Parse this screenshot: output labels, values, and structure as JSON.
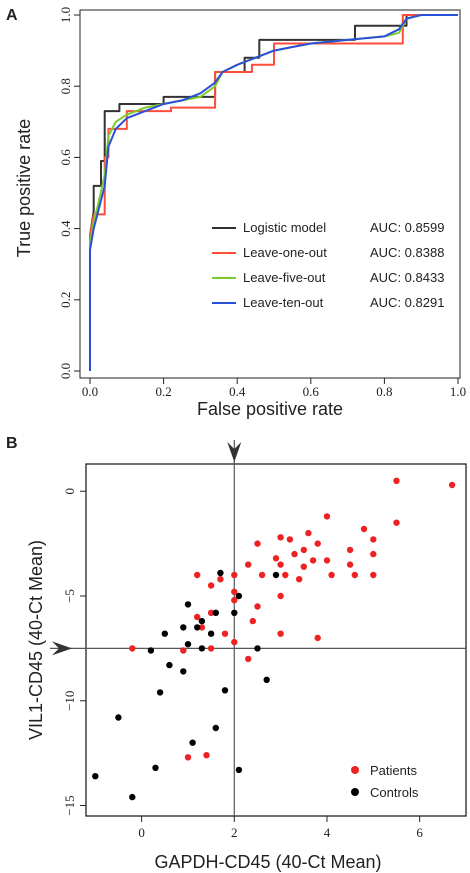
{
  "panel_a": {
    "letter": "A",
    "xlabel": "False positive rate",
    "ylabel": "True positive rate",
    "ticks": [
      "0.0",
      "0.2",
      "0.4",
      "0.6",
      "0.8",
      "1.0"
    ],
    "legend": [
      {
        "name": "Logistic model",
        "auc": "AUC: 0.8599",
        "color": "#333333"
      },
      {
        "name": "Leave-one-out",
        "auc": "AUC: 0.8388",
        "color": "#ff4d3a"
      },
      {
        "name": "Leave-five-out",
        "auc": "AUC: 0.8433",
        "color": "#7ccc2a"
      },
      {
        "name": "Leave-ten-out",
        "auc": "AUC: 0.8291",
        "color": "#2a4fd8"
      }
    ]
  },
  "panel_b": {
    "letter": "B",
    "xlabel": "GAPDH-CD45 (40-Ct Mean)",
    "ylabel": "VIL1-CD45 (40-Ct Mean)",
    "xticks": [
      "0",
      "2",
      "4",
      "6"
    ],
    "yticks": [
      "0",
      "−5",
      "−10",
      "−15"
    ],
    "legend": [
      {
        "name": "Patients",
        "color": "#ee2222"
      },
      {
        "name": "Controls",
        "color": "#000000"
      }
    ]
  },
  "chart_data": [
    {
      "type": "line",
      "title": "",
      "xlabel": "False positive rate",
      "ylabel": "True positive rate",
      "xlim": [
        0,
        1
      ],
      "ylim": [
        0,
        1
      ],
      "grid": false,
      "legend_position": "bottom-right",
      "series": [
        {
          "name": "Logistic model AUC: 0.8599",
          "color": "#333333",
          "x": [
            0,
            0,
            0.01,
            0.01,
            0.03,
            0.03,
            0.04,
            0.04,
            0.08,
            0.08,
            0.2,
            0.2,
            0.34,
            0.34,
            0.42,
            0.42,
            0.46,
            0.46,
            0.5,
            0.5,
            0.72,
            0.72,
            0.82,
            0.82,
            0.86,
            0.86,
            0.9,
            0.95,
            1.0
          ],
          "y": [
            0,
            0.38,
            0.45,
            0.52,
            0.52,
            0.59,
            0.59,
            0.73,
            0.73,
            0.75,
            0.75,
            0.77,
            0.77,
            0.84,
            0.84,
            0.88,
            0.88,
            0.93,
            0.93,
            0.93,
            0.93,
            0.97,
            0.97,
            0.97,
            0.97,
            1.0,
            1.0,
            1.0,
            1.0
          ]
        },
        {
          "name": "Leave-one-out AUC: 0.8388",
          "color": "#ff4d3a",
          "x": [
            0,
            0,
            0.01,
            0.02,
            0.04,
            0.04,
            0.05,
            0.05,
            0.1,
            0.1,
            0.22,
            0.22,
            0.34,
            0.34,
            0.44,
            0.44,
            0.5,
            0.5,
            0.62,
            0.62,
            0.85,
            0.85,
            0.9,
            0.95,
            1.0
          ],
          "y": [
            0,
            0.38,
            0.44,
            0.44,
            0.44,
            0.6,
            0.6,
            0.68,
            0.68,
            0.73,
            0.73,
            0.74,
            0.74,
            0.84,
            0.84,
            0.86,
            0.86,
            0.92,
            0.92,
            0.92,
            0.92,
            1.0,
            1.0,
            1.0,
            1.0
          ]
        },
        {
          "name": "Leave-five-out AUC: 0.8433",
          "color": "#7ccc2a",
          "x": [
            0,
            0.0,
            0.01,
            0.02,
            0.04,
            0.05,
            0.07,
            0.1,
            0.15,
            0.2,
            0.25,
            0.3,
            0.34,
            0.36,
            0.4,
            0.45,
            0.5,
            0.55,
            0.6,
            0.7,
            0.8,
            0.84,
            0.86,
            0.9,
            0.95,
            1.0
          ],
          "y": [
            0,
            0.36,
            0.42,
            0.46,
            0.55,
            0.66,
            0.7,
            0.72,
            0.74,
            0.75,
            0.76,
            0.77,
            0.8,
            0.84,
            0.86,
            0.88,
            0.9,
            0.91,
            0.92,
            0.93,
            0.94,
            0.95,
            0.99,
            1.0,
            1.0,
            1.0
          ]
        },
        {
          "name": "Leave-ten-out AUC: 0.8291",
          "color": "#2a4fd8",
          "x": [
            0,
            0.0,
            0.01,
            0.02,
            0.04,
            0.05,
            0.07,
            0.1,
            0.15,
            0.2,
            0.25,
            0.3,
            0.34,
            0.36,
            0.4,
            0.45,
            0.5,
            0.55,
            0.6,
            0.7,
            0.8,
            0.84,
            0.86,
            0.9,
            0.95,
            1.0
          ],
          "y": [
            0,
            0.34,
            0.4,
            0.44,
            0.52,
            0.63,
            0.68,
            0.71,
            0.73,
            0.75,
            0.76,
            0.78,
            0.81,
            0.84,
            0.86,
            0.88,
            0.9,
            0.91,
            0.92,
            0.93,
            0.94,
            0.96,
            0.99,
            1.0,
            1.0,
            1.0
          ]
        }
      ]
    },
    {
      "type": "scatter",
      "title": "",
      "xlabel": "GAPDH-CD45 (40-Ct Mean)",
      "ylabel": "VIL1-CD45 (40-Ct Mean)",
      "xlim": [
        -1.2,
        7.0
      ],
      "ylim": [
        -15.5,
        1.3
      ],
      "grid": false,
      "reference_lines": {
        "x": 2,
        "y": -7.5
      },
      "legend_position": "bottom-right",
      "series": [
        {
          "name": "Patients",
          "color": "#ee2222",
          "points": [
            [
              6.7,
              0.3
            ],
            [
              5.5,
              0.5
            ],
            [
              4.0,
              -1.2
            ],
            [
              4.8,
              -1.8
            ],
            [
              5.0,
              -2.3
            ],
            [
              5.5,
              -1.5
            ],
            [
              3.6,
              -2.0
            ],
            [
              3.2,
              -2.3
            ],
            [
              3.0,
              -2.2
            ],
            [
              2.5,
              -2.5
            ],
            [
              3.5,
              -2.8
            ],
            [
              3.8,
              -2.5
            ],
            [
              4.5,
              -2.8
            ],
            [
              3.3,
              -3.0
            ],
            [
              2.9,
              -3.2
            ],
            [
              3.7,
              -3.3
            ],
            [
              4.0,
              -3.3
            ],
            [
              3.5,
              -3.6
            ],
            [
              4.5,
              -3.5
            ],
            [
              5.0,
              -3.0
            ],
            [
              3.0,
              -3.5
            ],
            [
              3.1,
              -4.0
            ],
            [
              2.6,
              -4.0
            ],
            [
              2.3,
              -3.5
            ],
            [
              4.1,
              -4.0
            ],
            [
              4.6,
              -4.0
            ],
            [
              5.0,
              -4.0
            ],
            [
              3.4,
              -4.2
            ],
            [
              2.0,
              -4.0
            ],
            [
              1.7,
              -4.2
            ],
            [
              1.2,
              -4.0
            ],
            [
              1.5,
              -4.5
            ],
            [
              2.0,
              -4.8
            ],
            [
              3.0,
              -5.0
            ],
            [
              2.5,
              -5.5
            ],
            [
              2.0,
              -5.2
            ],
            [
              1.5,
              -5.8
            ],
            [
              1.2,
              -6.0
            ],
            [
              2.4,
              -6.2
            ],
            [
              1.8,
              -6.8
            ],
            [
              1.3,
              -6.5
            ],
            [
              3.0,
              -6.8
            ],
            [
              3.8,
              -7.0
            ],
            [
              1.5,
              -7.5
            ],
            [
              2.0,
              -7.2
            ],
            [
              0.9,
              -7.6
            ],
            [
              -0.2,
              -7.5
            ],
            [
              2.3,
              -8.0
            ],
            [
              1.0,
              -12.7
            ],
            [
              1.4,
              -12.6
            ]
          ]
        },
        {
          "name": "Controls",
          "color": "#000000",
          "points": [
            [
              1.7,
              -3.9
            ],
            [
              2.9,
              -4.0
            ],
            [
              2.1,
              -5.0
            ],
            [
              1.0,
              -5.4
            ],
            [
              1.6,
              -5.8
            ],
            [
              2.0,
              -5.8
            ],
            [
              1.3,
              -6.2
            ],
            [
              0.9,
              -6.5
            ],
            [
              0.5,
              -6.8
            ],
            [
              1.2,
              -6.5
            ],
            [
              1.5,
              -6.8
            ],
            [
              1.0,
              -7.3
            ],
            [
              1.3,
              -7.5
            ],
            [
              0.2,
              -7.6
            ],
            [
              2.5,
              -7.5
            ],
            [
              0.6,
              -8.3
            ],
            [
              0.9,
              -8.6
            ],
            [
              2.7,
              -9.0
            ],
            [
              0.4,
              -9.6
            ],
            [
              1.8,
              -9.5
            ],
            [
              -0.5,
              -10.8
            ],
            [
              1.6,
              -11.3
            ],
            [
              1.1,
              -12.0
            ],
            [
              0.3,
              -13.2
            ],
            [
              2.1,
              -13.3
            ],
            [
              -1.0,
              -13.6
            ],
            [
              -0.2,
              -14.6
            ]
          ]
        }
      ]
    }
  ]
}
